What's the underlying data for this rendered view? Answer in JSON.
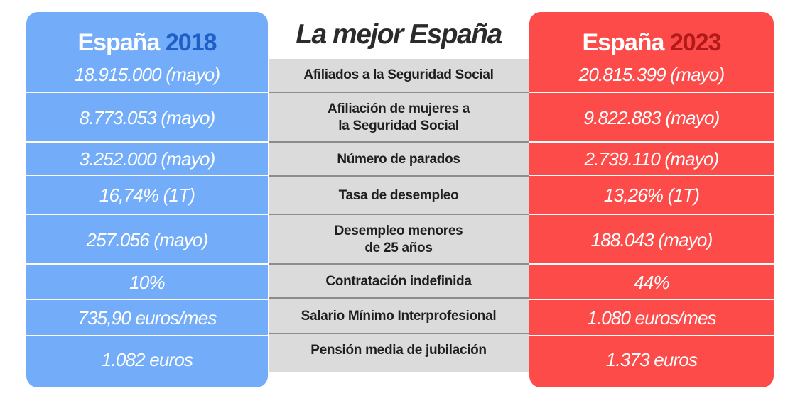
{
  "title": "La mejor España",
  "left": {
    "label": "España",
    "year": "2018",
    "bg_color": "#73adf9",
    "year_color": "#1f5fc8"
  },
  "right": {
    "label": "España",
    "year": "2023",
    "bg_color": "#fd4b4a",
    "year_color": "#b21a1a"
  },
  "rows": [
    {
      "label": [
        "Afiliados a la Seguridad Social"
      ],
      "v2018": "18.915.000 (mayo)",
      "v2023": "20.815.399 (mayo)"
    },
    {
      "label": [
        "Afiliación de mujeres a",
        "la Seguridad Social"
      ],
      "v2018": "8.773.053 (mayo)",
      "v2023": "9.822.883 (mayo)"
    },
    {
      "label": [
        "Número de parados"
      ],
      "v2018": "3.252.000 (mayo)",
      "v2023": "2.739.110 (mayo)"
    },
    {
      "label": [
        "Tasa de desempleo"
      ],
      "v2018": "16,74% (1T)",
      "v2023": "13,26% (1T)"
    },
    {
      "label": [
        "Desempleo menores",
        "de 25 años"
      ],
      "v2018": "257.056 (mayo)",
      "v2023": "188.043 (mayo)"
    },
    {
      "label": [
        "Contratación indefinida"
      ],
      "v2018": "10%",
      "v2023": "44%"
    },
    {
      "label": [
        "Salario Mínimo Interprofesional"
      ],
      "v2018": "735,90 euros/mes",
      "v2023": "1.080 euros/mes"
    },
    {
      "label": [
        "Pensión media de jubilación"
      ],
      "v2018": "1.082 euros",
      "v2023": "1.373 euros"
    }
  ]
}
